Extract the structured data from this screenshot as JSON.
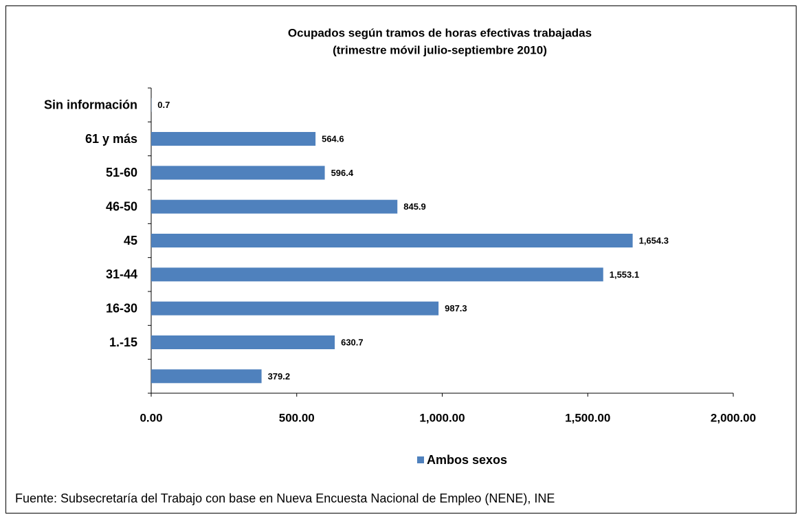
{
  "chart_data": {
    "type": "bar",
    "orientation": "horizontal",
    "title": "Ocupados según tramos de horas efectivas trabajadas",
    "subtitle": "(trimestre móvil julio-septiembre 2010)",
    "categories": [
      "Sin información",
      "61 y más",
      "51-60",
      "46-50",
      "45",
      "31-44",
      "16-30",
      "1.-15",
      null
    ],
    "series": [
      {
        "name": "Ambos sexos",
        "color": "#4f81bd",
        "values": [
          0.7,
          564.6,
          596.4,
          845.9,
          1654.3,
          1553.1,
          987.3,
          630.7,
          379.2
        ],
        "value_labels": [
          "0.7",
          "564.6",
          "596.4",
          "845.9",
          "1,654.3",
          "1,553.1",
          "987.3",
          "630.7",
          "379.2"
        ]
      }
    ],
    "xlim": [
      0,
      2000
    ],
    "xticks": [
      {
        "value": 0,
        "label": "0.00"
      },
      {
        "value": 500,
        "label": "500.00"
      },
      {
        "value": 1000,
        "label": "1,000.00"
      },
      {
        "value": 1500,
        "label": "1,500.00"
      },
      {
        "value": 2000,
        "label": "2,000.00"
      }
    ],
    "legend": "bottom",
    "source": "Fuente: Subsecretaría del Trabajo con base en Nueva Encuesta Nacional de Empleo (NENE), INE"
  }
}
